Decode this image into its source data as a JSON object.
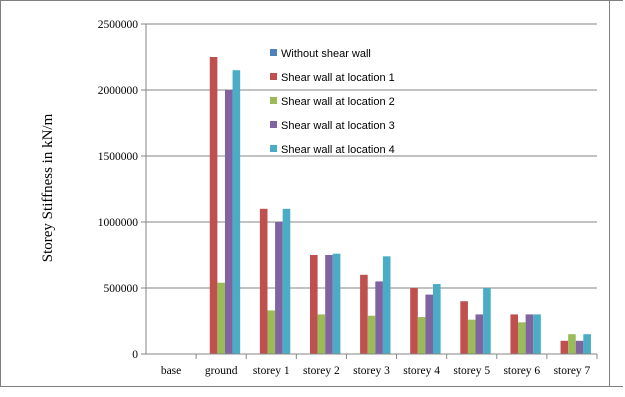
{
  "chart_data": {
    "type": "bar",
    "title": "",
    "xlabel": "",
    "ylabel": "Storey Stiffness in kN/m",
    "ylim": [
      0,
      2500000
    ],
    "yticks": [
      0,
      500000,
      1000000,
      1500000,
      2000000,
      2500000
    ],
    "grid": true,
    "legend_position": "top-right",
    "categories": [
      "base",
      "ground",
      "storey 1",
      "storey 2",
      "storey 3",
      "storey 4",
      "storey 5",
      "storey 6",
      "storey 7"
    ],
    "series": [
      {
        "name": "Without shear wall",
        "color": "#4f81bd",
        "values": [
          0,
          0,
          0,
          0,
          0,
          0,
          0,
          0,
          0
        ]
      },
      {
        "name": "Shear wall at location 1",
        "color": "#c0504d",
        "values": [
          0,
          2250000,
          1100000,
          750000,
          600000,
          500000,
          400000,
          300000,
          100000
        ]
      },
      {
        "name": "Shear wall at location 2",
        "color": "#9bbb59",
        "values": [
          0,
          540000,
          330000,
          300000,
          290000,
          280000,
          260000,
          240000,
          150000
        ]
      },
      {
        "name": "Shear wall at location 3",
        "color": "#8064a2",
        "values": [
          0,
          2000000,
          1000000,
          750000,
          550000,
          450000,
          300000,
          300000,
          100000
        ]
      },
      {
        "name": "Shear wall at location 4",
        "color": "#4bacc6",
        "values": [
          0,
          2150000,
          1100000,
          760000,
          740000,
          530000,
          500000,
          300000,
          150000
        ]
      }
    ]
  }
}
